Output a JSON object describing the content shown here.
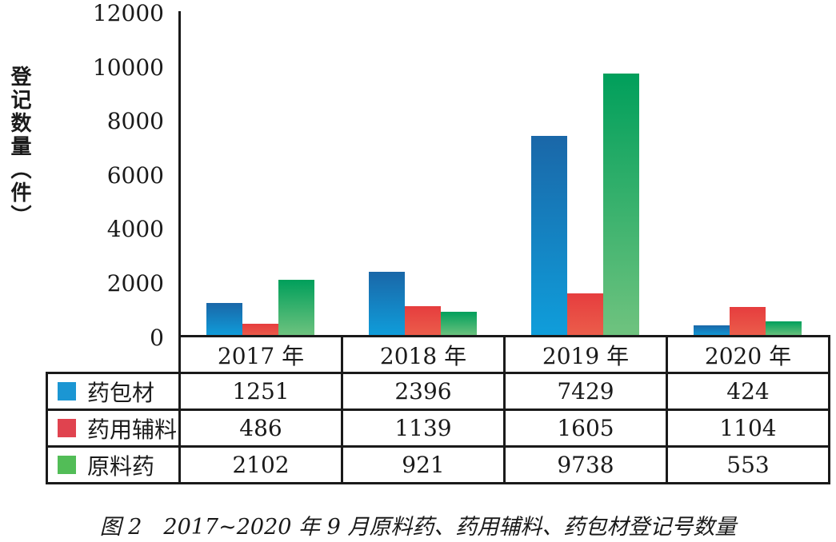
{
  "y_axis": {
    "label": "登记数量（件）",
    "ticks": [
      "12000",
      "10000",
      "8000",
      "6000",
      "4000",
      "2000",
      "0"
    ]
  },
  "chart_data": {
    "type": "bar",
    "categories": [
      "2017 年",
      "2018 年",
      "2019 年",
      "2020 年"
    ],
    "series": [
      {
        "key": "packaging",
        "name": "药包材",
        "values": [
          1251,
          2396,
          7429,
          424
        ],
        "color_top": "#1a67a8",
        "color_bottom": "#0f9edb",
        "legend_color": "#1b96d3"
      },
      {
        "key": "excipients",
        "name": "药用辅料",
        "values": [
          486,
          1139,
          1605,
          1104
        ],
        "color_top": "#e63d3e",
        "color_bottom": "#eb5e4b",
        "legend_color": "#e0434f"
      },
      {
        "key": "api",
        "name": "原料药",
        "values": [
          2102,
          921,
          9738,
          553
        ],
        "color_top": "#009f5b",
        "color_bottom": "#70c37f",
        "legend_color": "#52bd57"
      }
    ],
    "title": "图 2　2017~2020 年 9 月原料药、药用辅料、药包材登记号数量",
    "xlabel": "",
    "ylabel": "登记数量（件）",
    "ylim": [
      0,
      12000
    ],
    "ytick_step": 2000,
    "grid": false,
    "legend_position": "table-left-column"
  },
  "caption": "图 2　2017~2020 年 9 月原料药、药用辅料、药包材登记号数量"
}
